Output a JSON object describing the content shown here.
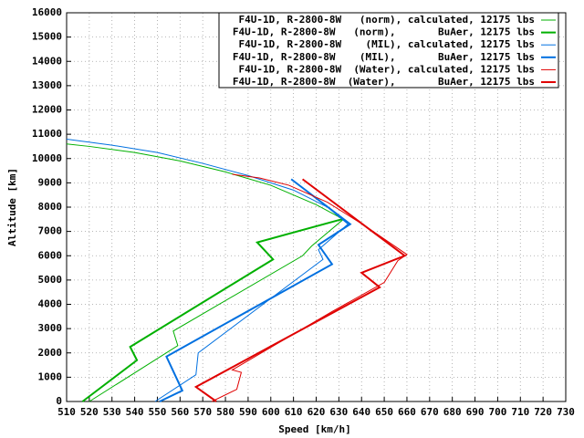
{
  "chart_data": {
    "type": "line",
    "xlabel": "Speed [km/h]",
    "ylabel": "Altitude [km]",
    "xlim": [
      510,
      730
    ],
    "ylim": [
      0,
      16000
    ],
    "xticks": [
      510,
      520,
      530,
      540,
      550,
      560,
      570,
      580,
      590,
      600,
      610,
      620,
      630,
      640,
      650,
      660,
      670,
      680,
      690,
      700,
      710,
      720,
      730
    ],
    "yticks": [
      0,
      1000,
      2000,
      3000,
      4000,
      5000,
      6000,
      7000,
      8000,
      9000,
      10000,
      11000,
      12000,
      13000,
      14000,
      15000,
      16000
    ],
    "grid": true,
    "legend": "top-right",
    "series": [
      {
        "name": "F4U-1D, R-2800-8W   (norm), calculated, 12175 lbs",
        "color": "#00b000",
        "width": 1,
        "x": [
          520,
          559,
          557,
          614,
          618,
          632,
          620,
          600,
          580,
          560,
          540,
          520,
          510
        ],
        "values": [
          0,
          2300,
          2900,
          6000,
          6400,
          7500,
          8100,
          8900,
          9450,
          9900,
          10250,
          10500,
          10600
        ]
      },
      {
        "name": "F4U-1D, R-2800-8W   (norm),       BuAer, 12175 lbs",
        "color": "#00b000",
        "width": 2,
        "x": [
          517,
          541,
          538,
          601,
          594,
          632
        ],
        "values": [
          0,
          1700,
          2250,
          5850,
          6550,
          7520
        ]
      },
      {
        "name": "F4U-1D, R-2800-8W    (MIL), calculated, 12175 lbs",
        "color": "#0070e0",
        "width": 1,
        "x": [
          549,
          567,
          568,
          623,
          621,
          634,
          625,
          610,
          590,
          570,
          550,
          530,
          510
        ],
        "values": [
          0,
          1100,
          2000,
          5850,
          6250,
          7300,
          8000,
          8700,
          9300,
          9800,
          10250,
          10550,
          10800
        ]
      },
      {
        "name": "F4U-1D, R-2800-8W    (MIL),       BuAer, 12175 lbs",
        "color": "#0070e0",
        "width": 2,
        "x": [
          551,
          561,
          554,
          627,
          621,
          635,
          609
        ],
        "values": [
          0,
          450,
          1850,
          5650,
          6450,
          7300,
          9150
        ]
      },
      {
        "name": "F4U-1D, R-2800-8W  (Water), calculated, 12175 lbs",
        "color": "#e00000",
        "width": 1,
        "x": [
          574,
          585,
          587,
          583,
          627,
          650,
          656,
          660,
          642,
          625,
          608,
          595,
          583
        ],
        "values": [
          0,
          500,
          1200,
          1300,
          3700,
          4900,
          5800,
          6050,
          7200,
          8200,
          8900,
          9200,
          9350
        ]
      },
      {
        "name": "F4U-1D, R-2800-8W  (Water),       BuAer, 12175 lbs",
        "color": "#e00000",
        "width": 2,
        "x": [
          576,
          567,
          648,
          640,
          659,
          614
        ],
        "values": [
          0,
          600,
          4700,
          5300,
          6000,
          9150
        ]
      }
    ]
  }
}
